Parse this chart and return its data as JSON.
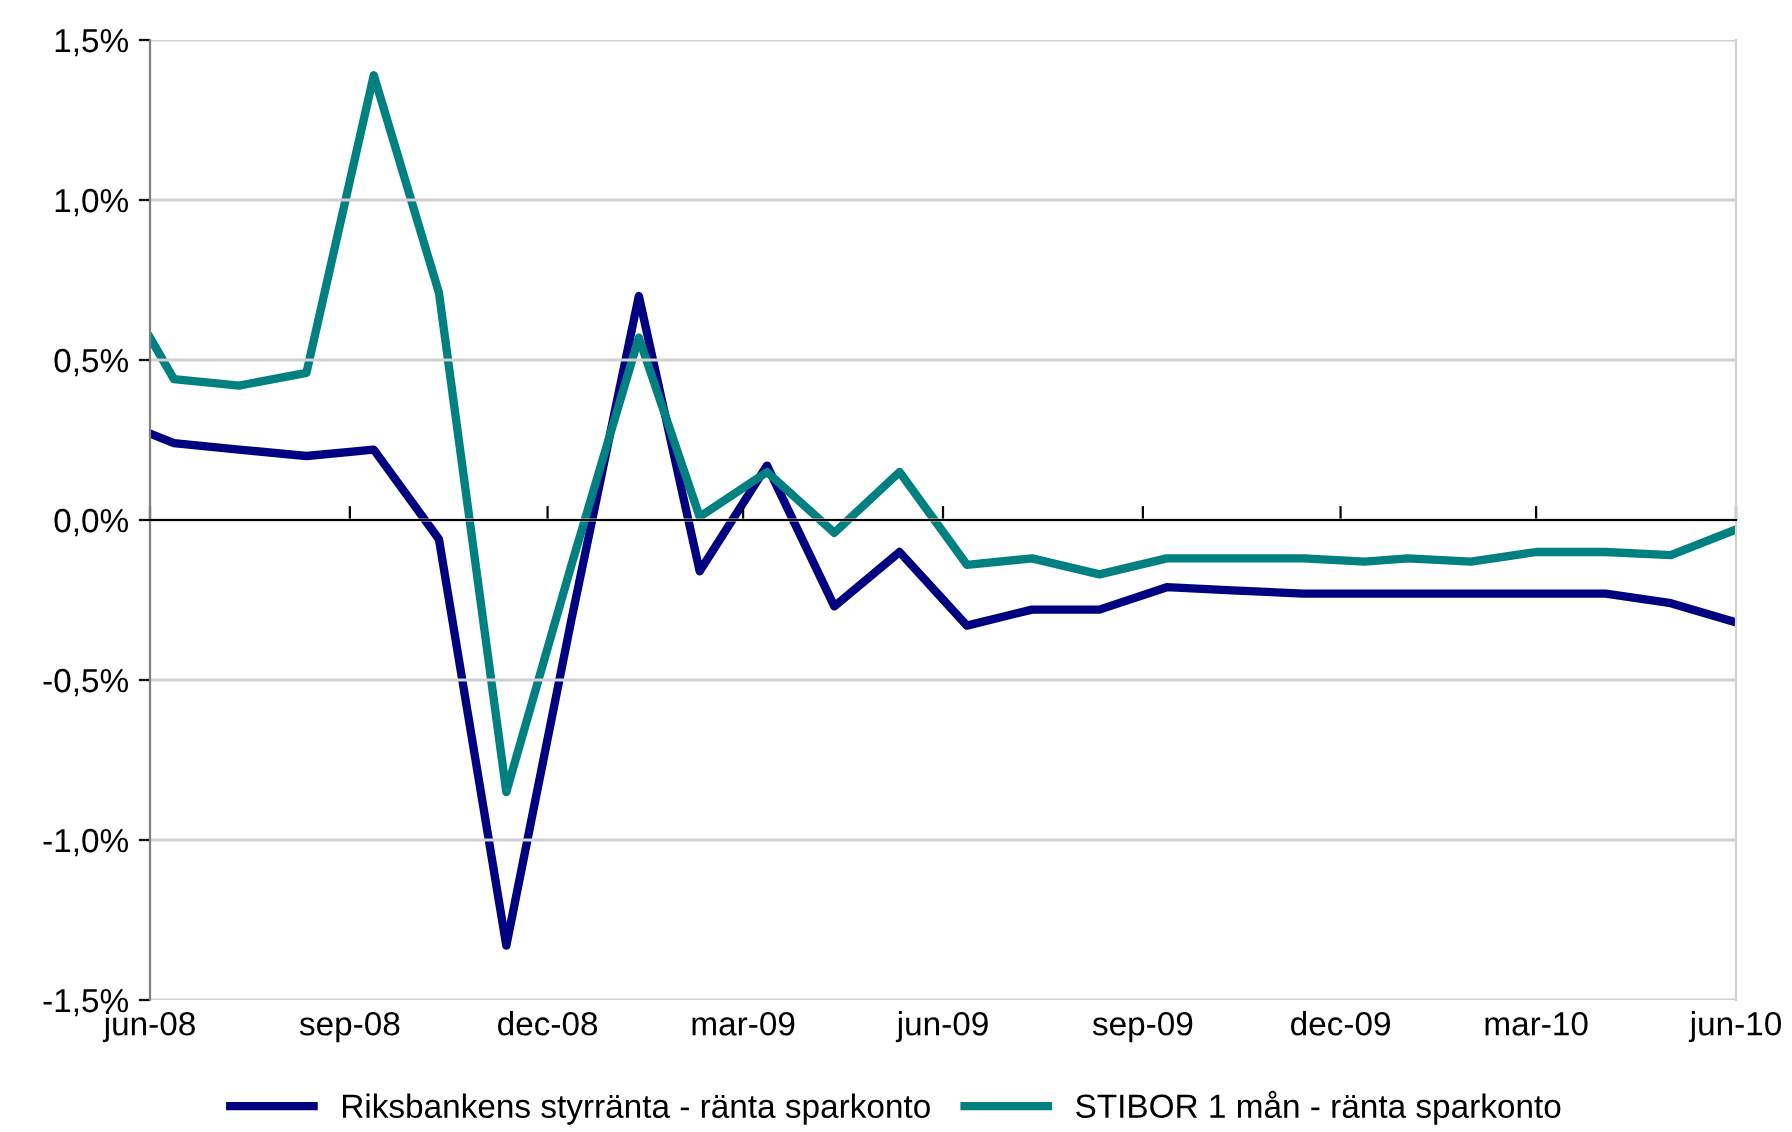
{
  "chart_data": {
    "type": "line",
    "x": [
      "2008-06-01",
      "2008-06-12",
      "2008-07-12",
      "2008-08-12",
      "2008-09-12",
      "2008-10-12",
      "2008-11-12",
      "2008-12-12",
      "2009-01-12",
      "2009-02-09",
      "2009-03-12",
      "2009-04-12",
      "2009-05-12",
      "2009-06-12",
      "2009-07-12",
      "2009-08-12",
      "2009-09-12",
      "2009-10-12",
      "2009-11-14",
      "2009-12-12",
      "2010-01-01",
      "2010-01-30",
      "2010-03-01",
      "2010-04-02",
      "2010-05-02",
      "2010-06-01"
    ],
    "series": [
      {
        "name": "Riksbankens styrränta - ränta sparkonto",
        "color": "#000080",
        "values": [
          0.27,
          0.24,
          0.22,
          0.2,
          0.22,
          -0.06,
          -1.33,
          -0.31,
          0.7,
          -0.16,
          0.17,
          -0.27,
          -0.1,
          -0.33,
          -0.28,
          -0.28,
          -0.21,
          -0.22,
          -0.23,
          -0.23,
          -0.23,
          -0.23,
          -0.23,
          -0.23,
          -0.26,
          -0.32
        ]
      },
      {
        "name": "STIBOR 1 mån - ränta sparkonto",
        "color": "#008080",
        "values": [
          0.57,
          0.44,
          0.42,
          0.46,
          1.39,
          0.71,
          -0.85,
          -0.14,
          0.57,
          0.01,
          0.15,
          -0.04,
          0.15,
          -0.14,
          -0.12,
          -0.17,
          -0.12,
          -0.12,
          -0.12,
          -0.13,
          -0.12,
          -0.13,
          -0.1,
          -0.1,
          -0.11,
          -0.03
        ]
      }
    ],
    "xlim": [
      "2008-06-01",
      "2010-06-01"
    ],
    "xticks": [
      {
        "value": "2008-06-01",
        "label": "jun-08"
      },
      {
        "value": "2008-09-01",
        "label": "sep-08"
      },
      {
        "value": "2008-12-01",
        "label": "dec-08"
      },
      {
        "value": "2009-03-01",
        "label": "mar-09"
      },
      {
        "value": "2009-06-01",
        "label": "jun-09"
      },
      {
        "value": "2009-09-01",
        "label": "sep-09"
      },
      {
        "value": "2009-12-01",
        "label": "dec-09"
      },
      {
        "value": "2010-03-01",
        "label": "mar-10"
      },
      {
        "value": "2010-06-01",
        "label": "jun-10"
      }
    ],
    "ylim": [
      -1.5,
      1.5
    ],
    "yticks": [
      {
        "value": -1.5,
        "label": "-1,5%"
      },
      {
        "value": -1.0,
        "label": "-1,0%"
      },
      {
        "value": -0.5,
        "label": "-0,5%"
      },
      {
        "value": 0,
        "label": "0,0%"
      },
      {
        "value": 0.5,
        "label": "0,5%"
      },
      {
        "value": 1.0,
        "label": "1,0%"
      },
      {
        "value": 1.5,
        "label": "1,5%"
      }
    ],
    "grid": "y",
    "legend": "bottom",
    "marker": "none",
    "line_style": "solid"
  }
}
